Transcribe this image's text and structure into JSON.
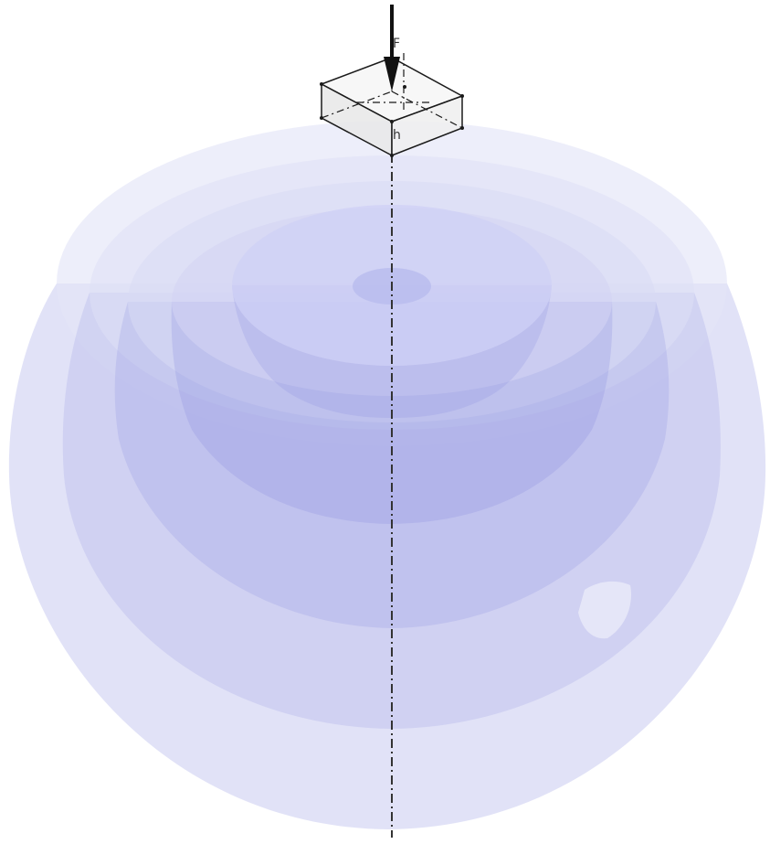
{
  "diagram": {
    "labels": {
      "force": "F",
      "height": "h"
    },
    "colors": {
      "background": "#ffffff",
      "bulb_fill": "#8a8fe0",
      "bulb_rim": "#e7e8f7",
      "block_fill": "#efefef",
      "block_stroke": "#1a1a1a",
      "axis": "#333333",
      "arrow": "#111111"
    },
    "elements": {
      "bulbs": [
        "pressure-bulb-1",
        "pressure-bulb-2",
        "pressure-bulb-3",
        "pressure-bulb-4",
        "pressure-bulb-5",
        "pressure-bulb-6"
      ],
      "icons": [
        "force-arrow-icon"
      ]
    }
  }
}
